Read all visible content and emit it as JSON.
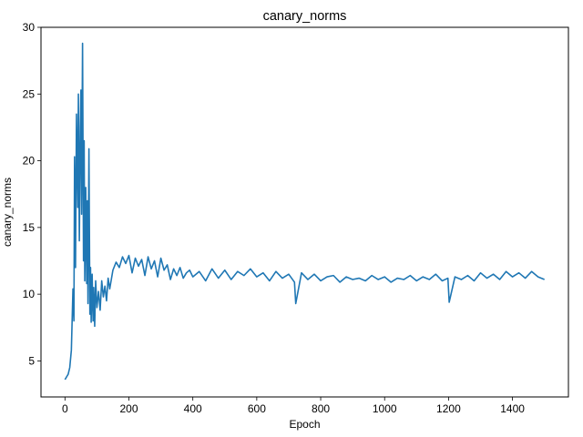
{
  "chart_data": {
    "type": "line",
    "title": "canary_norms",
    "xlabel": "Epoch",
    "ylabel": "canary_norms",
    "xlim": [
      -75,
      1575
    ],
    "ylim": [
      2.3,
      30.0
    ],
    "xticks": [
      0,
      200,
      400,
      600,
      800,
      1000,
      1200,
      1400
    ],
    "yticks": [
      5,
      10,
      15,
      20,
      25,
      30
    ],
    "grid": false,
    "legend": "none",
    "line_color": "#1f77b4",
    "series": [
      {
        "x": [
          0,
          5,
          10,
          15,
          20,
          25,
          28,
          30,
          33,
          36,
          40,
          42,
          45,
          48,
          50,
          52,
          55,
          58,
          60,
          62,
          65,
          68,
          70,
          72,
          75,
          78,
          80,
          82,
          85,
          88,
          90,
          93,
          96,
          100,
          105,
          110,
          115,
          120,
          125,
          130,
          135,
          140,
          150,
          160,
          170,
          180,
          190,
          200,
          210,
          220,
          230,
          240,
          250,
          260,
          270,
          280,
          290,
          300,
          310,
          320,
          330,
          340,
          350,
          360,
          370,
          380,
          390,
          400,
          420,
          440,
          460,
          480,
          500,
          520,
          540,
          560,
          580,
          600,
          620,
          640,
          660,
          680,
          700,
          718,
          722,
          740,
          760,
          780,
          800,
          820,
          840,
          860,
          880,
          900,
          920,
          940,
          960,
          980,
          1000,
          1020,
          1040,
          1060,
          1080,
          1100,
          1120,
          1140,
          1160,
          1180,
          1198,
          1202,
          1220,
          1240,
          1260,
          1280,
          1300,
          1320,
          1340,
          1360,
          1380,
          1400,
          1420,
          1440,
          1460,
          1480,
          1500
        ],
        "y": [
          3.6,
          3.8,
          4.0,
          4.5,
          5.8,
          10.4,
          8.0,
          20.3,
          12.0,
          23.5,
          16.5,
          25.0,
          14.0,
          22.5,
          25.3,
          16.0,
          28.8,
          12.5,
          21.5,
          11.0,
          18.0,
          10.8,
          17.0,
          9.3,
          20.9,
          8.5,
          12.0,
          7.9,
          11.5,
          8.0,
          10.5,
          7.6,
          11.0,
          9.0,
          10.2,
          8.8,
          11.0,
          9.8,
          10.6,
          9.5,
          11.2,
          10.4,
          11.8,
          12.4,
          12.0,
          12.8,
          12.3,
          12.9,
          11.6,
          12.7,
          12.1,
          12.6,
          11.4,
          12.8,
          11.9,
          12.5,
          11.3,
          12.7,
          11.8,
          12.2,
          11.1,
          11.9,
          11.4,
          12.0,
          11.2,
          11.6,
          11.8,
          11.3,
          11.7,
          11.0,
          11.9,
          11.2,
          11.8,
          11.1,
          11.7,
          11.4,
          11.9,
          11.3,
          11.6,
          11.0,
          11.7,
          11.2,
          11.5,
          10.9,
          9.3,
          11.6,
          11.1,
          11.5,
          11.0,
          11.3,
          11.4,
          10.9,
          11.3,
          11.1,
          11.2,
          11.0,
          11.4,
          11.1,
          11.3,
          10.9,
          11.2,
          11.1,
          11.4,
          11.0,
          11.3,
          11.1,
          11.5,
          11.0,
          11.2,
          9.4,
          11.3,
          11.1,
          11.4,
          11.0,
          11.6,
          11.2,
          11.5,
          11.1,
          11.7,
          11.3,
          11.6,
          11.2,
          11.7,
          11.3,
          11.1
        ]
      }
    ]
  }
}
